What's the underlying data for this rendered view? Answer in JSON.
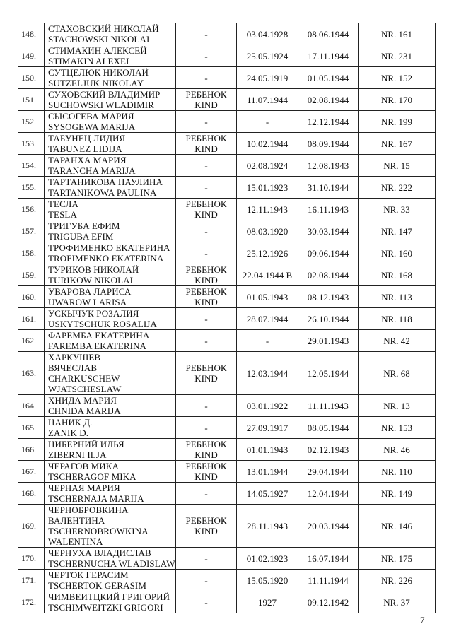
{
  "table": {
    "rows": [
      [
        "148.",
        [
          "СТАХОВСКИЙ НИКОЛАЙ",
          "STACHOWSKI NIKOLAI"
        ],
        "-",
        "03.04.1928",
        "08.06.1944",
        "NR. 161"
      ],
      [
        "149.",
        [
          "СТИМАКИН АЛЕКСЕЙ",
          "STIMAKIN ALEXEI"
        ],
        "-",
        "25.05.1924",
        "17.11.1944",
        "NR. 231"
      ],
      [
        "150.",
        [
          "СУТЦЕЛЮК НИКОЛАЙ",
          "SUTZELJUK NIKOLAY"
        ],
        "-",
        "24.05.1919",
        "01.05.1944",
        "NR. 152"
      ],
      [
        "151.",
        [
          "СУХОВСКИЙ ВЛАДИМИР",
          "SUCHOWSKI WLADIMIR"
        ],
        [
          "РЕБЕНОК",
          "KIND"
        ],
        "11.07.1944",
        "02.08.1944",
        "NR. 170"
      ],
      [
        "152.",
        [
          "СЫСОГЕВА МАРИЯ",
          "SYSOGEWA MARIJA"
        ],
        "-",
        "-",
        "12.12.1944",
        "NR. 199"
      ],
      [
        "153.",
        [
          "ТАБУНЕЦ ЛИДИЯ",
          "TABUNEZ LIDIJA"
        ],
        [
          "РЕБЕНОК",
          "KIND"
        ],
        "10.02.1944",
        "08.09.1944",
        "NR. 167"
      ],
      [
        "154.",
        [
          "ТАРАНХА МАРИЯ",
          "TARANCHA  MARIJA"
        ],
        "-",
        "02.08.1924",
        "12.08.1943",
        "NR. 15"
      ],
      [
        "155.",
        [
          "ТАРТАНИКОВА ПАУЛИНА",
          "TARTANIKOWA PAULINA"
        ],
        "-",
        "15.01.1923",
        "31.10.1944",
        "NR. 222"
      ],
      [
        "156.",
        [
          "ТЕСЛА",
          "TESLA"
        ],
        [
          "РЕБЕНОК",
          "KIND"
        ],
        "12.11.1943",
        "16.11.1943",
        "NR. 33"
      ],
      [
        "157.",
        [
          "ТРИГУБА ЕФИМ",
          "TRIGUBA EFIM"
        ],
        "-",
        "08.03.1920",
        "30.03.1944",
        "NR. 147"
      ],
      [
        "158.",
        [
          "ТРОФИМЕНКО ЕКАТЕРИНА",
          "TROFIMENKO  EKATERINA"
        ],
        "-",
        "25.12.1926",
        "09.06.1944",
        "NR. 160"
      ],
      [
        "159.",
        [
          "ТУРИКОВ НИКОЛАЙ",
          "TURIKOW NIKOLAI"
        ],
        [
          "РЕБЕНОК",
          "KIND"
        ],
        "22.04.1944 В",
        "02.08.1944",
        "NR. 168"
      ],
      [
        "160.",
        [
          "УВАРОВА ЛАРИСА",
          "UWAROW LARISA"
        ],
        [
          "РЕБЕНОК",
          "KIND"
        ],
        "01.05.1943",
        "08.12.1943",
        "NR. 113"
      ],
      [
        "161.",
        [
          "УСКЫЧУК РОЗАЛИЯ",
          "USKYTSCHUK ROSALIJA"
        ],
        "-",
        "28.07.1944",
        "26.10.1944",
        "NR. 118"
      ],
      [
        "162.",
        [
          "ФАРЕМБА ЕКАТЕРИНА",
          "FAREMBA EKATERINA"
        ],
        "-",
        "-",
        "29.01.1943",
        "NR. 42"
      ],
      [
        "163.",
        [
          "ХАРКУШЕВ",
          "ВЯЧЕСЛАВ",
          "CHARKUSCHEW",
          "WJATSCHESLAW"
        ],
        [
          "РЕБЕНОК",
          "KIND"
        ],
        "12.03.1944",
        "12.05.1944",
        "NR. 68"
      ],
      [
        "164.",
        [
          "ХНИДА МАРИЯ",
          "CHNIDA MARIJA"
        ],
        "-",
        "03.01.1922",
        "11.11.1943",
        "NR. 13"
      ],
      [
        "165.",
        [
          "ЦАНИК Д.",
          "ZANIK D."
        ],
        "-",
        "27.09.1917",
        "08.05.1944",
        "NR. 153"
      ],
      [
        "166.",
        [
          "ЦИБЕРНИЙ ИЛЬЯ",
          "ZIBERNI ILJA"
        ],
        [
          "РЕБЕНОК",
          "KIND"
        ],
        "01.01.1943",
        "02.12.1943",
        "NR. 46"
      ],
      [
        "167.",
        [
          "ЧЕРАГОВ МИКА",
          "TSCHERAGOF MIKA"
        ],
        [
          "РЕБЕНОК",
          "KIND"
        ],
        "13.01.1944",
        "29.04.1944",
        "NR. 110"
      ],
      [
        "168.",
        [
          "ЧЕРНАЯ МАРИЯ",
          "TSCHERNAJA MARIJA"
        ],
        "-",
        "14.05.1927",
        "12.04.1944",
        "NR. 149"
      ],
      [
        "169.",
        [
          "ЧЕРНОБРОВКИНА",
          "ВАЛЕНТИНА",
          "TSCHERNOBROWKINA",
          "WALENTINA"
        ],
        [
          "РЕБЕНОК",
          "KIND"
        ],
        "28.11.1943",
        "20.03.1944",
        "NR. 146"
      ],
      [
        "170.",
        [
          "ЧЕРНУХА ВЛАДИСЛАВ",
          "TSCHERNUCHA WLADISLAW"
        ],
        "-",
        "01.02.1923",
        "16.07.1944",
        "NR. 175"
      ],
      [
        "171.",
        [
          "ЧЕРТОК ГЕРАСИМ",
          "TSCHERTOK GERASIM"
        ],
        "-",
        "15.05.1920",
        "11.11.1944",
        "NR. 226"
      ],
      [
        "172.",
        [
          "ЧИМВЕИТЦКИЙ ГРИГОРИЙ",
          "TSCHIMWEITZKI GRIGORI"
        ],
        "-",
        "1927",
        "09.12.1942",
        "NR. 37"
      ]
    ]
  },
  "footer": {
    "page_number": "7"
  }
}
